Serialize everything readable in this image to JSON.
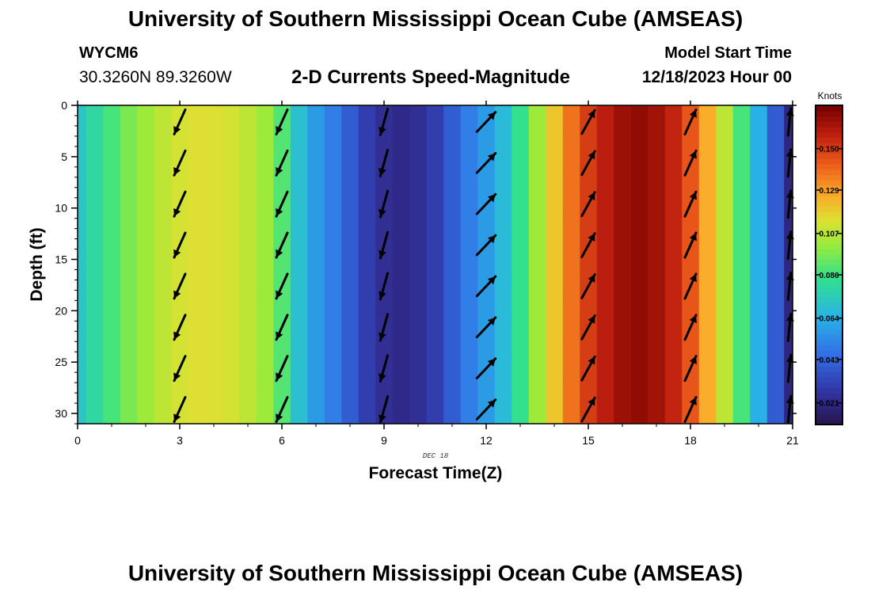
{
  "header": {
    "title": "University of Southern Mississippi Ocean Cube (AMSEAS)",
    "station": "WYCM6",
    "coords": "30.3260N  89.3260W",
    "subtitle": "2-D Currents Speed-Magnitude",
    "model_label": "Model Start Time",
    "model_date": "12/18/2023 Hour 00"
  },
  "footer": {
    "title": "University of Southern Mississippi Ocean Cube (AMSEAS)"
  },
  "chart_data": {
    "type": "heatmap",
    "title": "2-D Currents Speed-Magnitude",
    "xlabel": "Forecast Time(Z)",
    "ylabel": "Depth (ft)",
    "date_label": "DEC 18",
    "xlim": [
      0,
      21
    ],
    "ylim": [
      31,
      0
    ],
    "x_ticks": [
      0,
      3,
      6,
      9,
      12,
      15,
      18,
      21
    ],
    "y_ticks": [
      0,
      5,
      10,
      15,
      20,
      25,
      30
    ],
    "colorbar": {
      "label": "Knots",
      "ticks": [
        "0.150",
        "0.129",
        "0.107",
        "0.086",
        "0.064",
        "0.043",
        "0.021"
      ],
      "tick_values": [
        0.15,
        0.129,
        0.107,
        0.086,
        0.064,
        0.043,
        0.021
      ],
      "range": [
        0.01,
        0.172
      ]
    },
    "speed_by_hour": {
      "x": [
        0,
        0.5,
        1,
        1.5,
        2,
        2.5,
        3,
        3.5,
        4,
        4.5,
        5,
        5.5,
        6,
        6.5,
        7,
        7.5,
        8,
        8.5,
        9,
        9.5,
        10,
        10.5,
        11,
        11.5,
        12,
        12.5,
        13,
        13.5,
        14,
        14.5,
        15,
        15.5,
        16,
        16.5,
        17,
        17.5,
        18,
        18.5,
        19,
        19.5,
        20,
        20.5,
        21
      ],
      "values": [
        0.072,
        0.08,
        0.088,
        0.096,
        0.102,
        0.108,
        0.112,
        0.114,
        0.114,
        0.112,
        0.108,
        0.102,
        0.09,
        0.07,
        0.058,
        0.05,
        0.04,
        0.03,
        0.024,
        0.022,
        0.024,
        0.03,
        0.04,
        0.05,
        0.058,
        0.068,
        0.084,
        0.102,
        0.12,
        0.138,
        0.15,
        0.158,
        0.164,
        0.166,
        0.163,
        0.156,
        0.144,
        0.126,
        0.108,
        0.088,
        0.064,
        0.04,
        0.02
      ]
    },
    "vectors": [
      {
        "time": 3,
        "dx": -0.45,
        "dy": 1.0
      },
      {
        "time": 6,
        "dx": -0.45,
        "dy": 1.0
      },
      {
        "time": 9,
        "dx": -0.28,
        "dy": 1.0
      },
      {
        "time": 12,
        "dx": 0.95,
        "dy": -1.0
      },
      {
        "time": 15,
        "dx": 0.55,
        "dy": -1.0
      },
      {
        "time": 18,
        "dx": 0.45,
        "dy": -1.0
      },
      {
        "time": 21,
        "dx": 0.1,
        "dy": -1.0
      }
    ],
    "vector_depths": [
      2,
      6,
      10,
      14,
      18,
      22,
      26,
      30
    ]
  }
}
